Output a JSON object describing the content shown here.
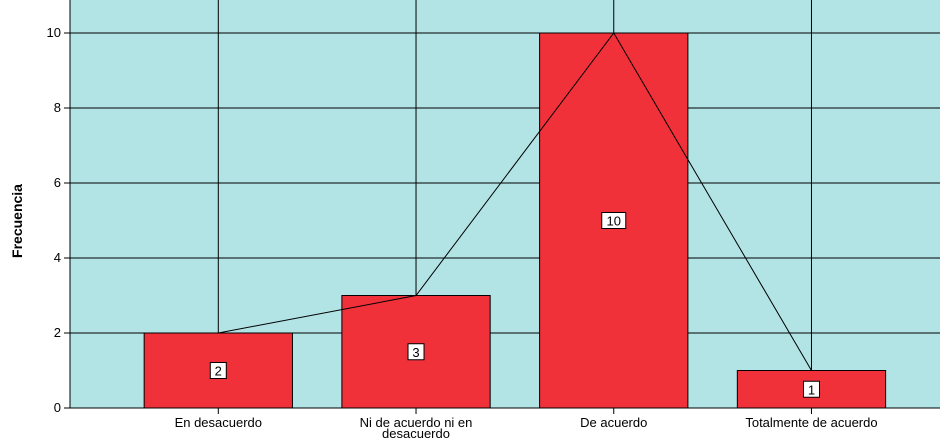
{
  "chart_data": {
    "type": "bar",
    "categories": [
      "En desacuerdo",
      "Ni de acuerdo ni en desacuerdo",
      "De acuerdo",
      "Totalmente de acuerdo"
    ],
    "category_label_lines": [
      [
        "En desacuerdo"
      ],
      [
        "Ni de acuerdo ni en",
        "desacuerdo"
      ],
      [
        "De acuerdo"
      ],
      [
        "Totalmente de acuerdo"
      ]
    ],
    "values": [
      2,
      3,
      10,
      1
    ],
    "data_labels": [
      "2",
      "3",
      "10",
      "1"
    ],
    "title": "",
    "xlabel": "",
    "ylabel": "Frecuencia",
    "ylim": [
      0,
      10
    ],
    "yticks": [
      0,
      2,
      4,
      6,
      8,
      10
    ],
    "overlay": "frequency-polygon",
    "grid": true,
    "colors": {
      "plot_background": "#b2e4e6",
      "bar_fill": "#f0313a",
      "bar_stroke": "#000000",
      "grid": "#000000",
      "line": "#000000"
    }
  }
}
